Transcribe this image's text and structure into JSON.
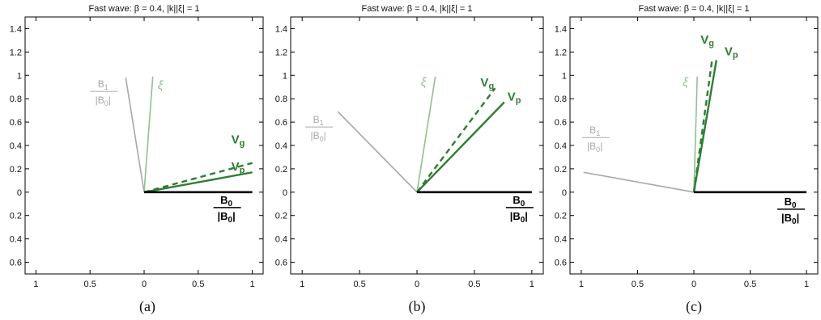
{
  "chart_data": [
    {
      "type": "line",
      "title": "Fast wave: β = 0.4,  |k||ξ| = 1",
      "caption": "(a)",
      "xlim": [
        -1.1,
        1.1
      ],
      "ylim": [
        -0.7,
        1.5
      ],
      "x_ticks": [
        -1,
        -0.5,
        0,
        0.5,
        1
      ],
      "x_tick_labels": [
        "1",
        "0.5",
        "0",
        "0.5",
        "1"
      ],
      "y_ticks": [
        -0.6,
        -0.4,
        -0.2,
        0,
        0.2,
        0.4,
        0.6,
        0.8,
        1,
        1.2,
        1.4
      ],
      "y_tick_labels": [
        "0.6",
        "0.4",
        "0.2",
        "0",
        "0.2",
        "0.4",
        "0.6",
        "0.8",
        "1",
        "1.2",
        "1.4"
      ],
      "grid": false,
      "vectors": [
        {
          "id": "b1",
          "x": -0.17,
          "y": 0.98,
          "color": "#a8a8a8",
          "style": "solid",
          "label_num": "B",
          "label_sub": "1",
          "label_den": "|B",
          "label_den_sub": "0",
          "label_den_close": "|"
        },
        {
          "id": "xi",
          "x": 0.08,
          "y": 0.99,
          "color": "#90c090",
          "style": "solid",
          "label": "ξ"
        },
        {
          "id": "vg",
          "x": 1.0,
          "y": 0.25,
          "color": "#2e7d32",
          "style": "dashed",
          "label": "V",
          "label_sub": "g"
        },
        {
          "id": "vp",
          "x": 1.0,
          "y": 0.17,
          "color": "#2e7d32",
          "style": "solid",
          "label": "V",
          "label_sub": "p"
        },
        {
          "id": "b0",
          "x": 1.0,
          "y": 0.0,
          "color": "#000000",
          "style": "solid",
          "label_num": "B",
          "label_sub": "0",
          "label_den": "|B",
          "label_den_sub": "0",
          "label_den_close": "|"
        }
      ]
    },
    {
      "type": "line",
      "title": "Fast wave: β = 0.4,  |k||ξ| = 1",
      "caption": "(b)",
      "xlim": [
        -1.1,
        1.1
      ],
      "ylim": [
        -0.7,
        1.5
      ],
      "x_ticks": [
        -1,
        -0.5,
        0,
        0.5,
        1
      ],
      "x_tick_labels": [
        "1",
        "0.5",
        "0",
        "0.5",
        "1"
      ],
      "y_ticks": [
        -0.6,
        -0.4,
        -0.2,
        0,
        0.2,
        0.4,
        0.6,
        0.8,
        1,
        1.2,
        1.4
      ],
      "y_tick_labels": [
        "0.6",
        "0.4",
        "0.2",
        "0",
        "0.2",
        "0.4",
        "0.6",
        "0.8",
        "1",
        "1.2",
        "1.4"
      ],
      "grid": false,
      "vectors": [
        {
          "id": "b1",
          "x": -0.69,
          "y": 0.69,
          "color": "#a8a8a8",
          "style": "solid",
          "label_num": "B",
          "label_sub": "1",
          "label_den": "|B",
          "label_den_sub": "0",
          "label_den_close": "|"
        },
        {
          "id": "xi",
          "x": 0.16,
          "y": 0.99,
          "color": "#90c090",
          "style": "solid",
          "label": "ξ"
        },
        {
          "id": "vg",
          "x": 0.68,
          "y": 0.89,
          "color": "#2e7d32",
          "style": "dashed",
          "label": "V",
          "label_sub": "g"
        },
        {
          "id": "vp",
          "x": 0.76,
          "y": 0.77,
          "color": "#2e7d32",
          "style": "solid",
          "label": "V",
          "label_sub": "p"
        },
        {
          "id": "b0",
          "x": 1.0,
          "y": 0.0,
          "color": "#000000",
          "style": "solid",
          "label_num": "B",
          "label_sub": "0",
          "label_den": "|B",
          "label_den_sub": "0",
          "label_den_close": "|"
        }
      ]
    },
    {
      "type": "line",
      "title": "Fast wave: β = 0.4,  |k||ξ| = 1",
      "caption": "(c)",
      "xlim": [
        -1.1,
        1.1
      ],
      "ylim": [
        -0.7,
        1.5
      ],
      "x_ticks": [
        -1,
        -0.5,
        0,
        0.5,
        1
      ],
      "x_tick_labels": [
        "1",
        "0.5",
        "0",
        "0.5",
        "1"
      ],
      "y_ticks": [
        -0.6,
        -0.4,
        -0.2,
        0,
        0.2,
        0.4,
        0.6,
        0.8,
        1,
        1.2,
        1.4
      ],
      "y_tick_labels": [
        "0.6",
        "0.4",
        "0.2",
        "0",
        "0.2",
        "0.4",
        "0.6",
        "0.8",
        "1",
        "1.2",
        "1.4"
      ],
      "grid": false,
      "vectors": [
        {
          "id": "b1",
          "x": -0.98,
          "y": 0.17,
          "color": "#a8a8a8",
          "style": "solid",
          "label_num": "B",
          "label_sub": "1",
          "label_den": "|B",
          "label_den_sub": "0",
          "label_den_close": "|"
        },
        {
          "id": "xi",
          "x": 0.03,
          "y": 0.99,
          "color": "#90c090",
          "style": "solid",
          "label": "ξ"
        },
        {
          "id": "vg",
          "x": 0.16,
          "y": 1.12,
          "color": "#2e7d32",
          "style": "dashed",
          "label": "V",
          "label_sub": "g"
        },
        {
          "id": "vp",
          "x": 0.2,
          "y": 1.13,
          "color": "#2e7d32",
          "style": "solid",
          "label": "V",
          "label_sub": "p"
        },
        {
          "id": "b0",
          "x": 1.0,
          "y": 0.0,
          "color": "#000000",
          "style": "solid",
          "label_num": "B",
          "label_sub": "0",
          "label_den": "|B",
          "label_den_sub": "0",
          "label_den_close": "|"
        }
      ]
    }
  ]
}
